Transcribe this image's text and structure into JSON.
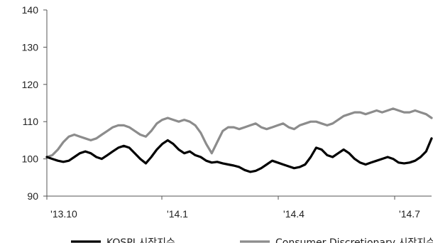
{
  "chart_data": {
    "type": "line",
    "title": "",
    "xlabel": "",
    "ylabel": "",
    "ylim": [
      90,
      140
    ],
    "yticks": [
      90,
      100,
      110,
      120,
      130,
      140
    ],
    "x_tick_labels": [
      "'13.10",
      "'14.1",
      "'14.4",
      "'14.7"
    ],
    "grid": false,
    "legend_position": "bottom",
    "series": [
      {
        "name": "KOSPI 시장지수",
        "color": "#000000",
        "values": [
          100.5,
          100.0,
          99.5,
          99.2,
          99.5,
          100.5,
          101.5,
          102.0,
          101.5,
          100.5,
          100.0,
          101.0,
          102.0,
          103.0,
          103.5,
          103.0,
          101.5,
          100.0,
          98.8,
          100.5,
          102.5,
          104.0,
          105.0,
          104.0,
          102.5,
          101.5,
          102.0,
          101.0,
          100.5,
          99.5,
          99.0,
          99.2,
          98.8,
          98.5,
          98.2,
          97.8,
          97.0,
          96.5,
          96.8,
          97.5,
          98.5,
          99.5,
          99.0,
          98.5,
          98.0,
          97.5,
          97.8,
          98.5,
          100.5,
          103.0,
          102.5,
          101.0,
          100.5,
          101.5,
          102.5,
          101.5,
          100.0,
          99.0,
          98.5,
          99.0,
          99.5,
          100.0,
          100.5,
          100.0,
          99.0,
          98.8,
          99.0,
          99.5,
          100.5,
          102.0,
          105.5
        ]
      },
      {
        "name": "Consumer Discretionary 시장지수",
        "color": "#8c8c8c",
        "values": [
          100.5,
          101.0,
          102.5,
          104.5,
          106.0,
          106.5,
          106.0,
          105.5,
          105.0,
          105.5,
          106.5,
          107.5,
          108.5,
          109.0,
          109.0,
          108.5,
          107.5,
          106.5,
          106.0,
          107.5,
          109.5,
          110.5,
          111.0,
          110.5,
          110.0,
          110.5,
          110.0,
          109.0,
          107.0,
          104.0,
          101.5,
          104.5,
          107.5,
          108.5,
          108.5,
          108.0,
          108.5,
          109.0,
          109.5,
          108.5,
          108.0,
          108.5,
          109.0,
          109.5,
          108.5,
          108.0,
          109.0,
          109.5,
          110.0,
          110.0,
          109.5,
          109.0,
          109.5,
          110.5,
          111.5,
          112.0,
          112.5,
          112.5,
          112.0,
          112.5,
          113.0,
          112.5,
          113.0,
          113.5,
          113.0,
          112.5,
          112.5,
          113.0,
          112.5,
          112.0,
          111.0
        ]
      }
    ]
  }
}
